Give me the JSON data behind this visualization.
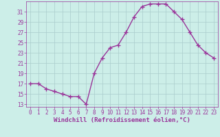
{
  "x": [
    0,
    1,
    2,
    3,
    4,
    5,
    6,
    7,
    8,
    9,
    10,
    11,
    12,
    13,
    14,
    15,
    16,
    17,
    18,
    19,
    20,
    21,
    22,
    23
  ],
  "y": [
    17,
    17,
    16,
    15.5,
    15,
    14.5,
    14.5,
    13,
    19,
    22,
    24,
    24.5,
    27,
    30,
    32,
    32.5,
    32.5,
    32.5,
    31,
    29.5,
    27,
    24.5,
    23,
    22
  ],
  "line_color": "#993399",
  "marker": "+",
  "marker_size": 4,
  "bg_color": "#cceee8",
  "grid_color": "#aacccc",
  "xlabel": "Windchill (Refroidissement éolien,°C)",
  "xlabel_color": "#993399",
  "tick_color": "#993399",
  "yticks": [
    13,
    15,
    17,
    19,
    21,
    23,
    25,
    27,
    29,
    31
  ],
  "xticks": [
    0,
    1,
    2,
    3,
    4,
    5,
    6,
    7,
    8,
    9,
    10,
    11,
    12,
    13,
    14,
    15,
    16,
    17,
    18,
    19,
    20,
    21,
    22,
    23
  ],
  "xlim": [
    -0.5,
    23.5
  ],
  "ylim": [
    12.5,
    33
  ],
  "xlabel_fontsize": 6.5,
  "tick_fontsize": 5.5,
  "linewidth": 1.0
}
